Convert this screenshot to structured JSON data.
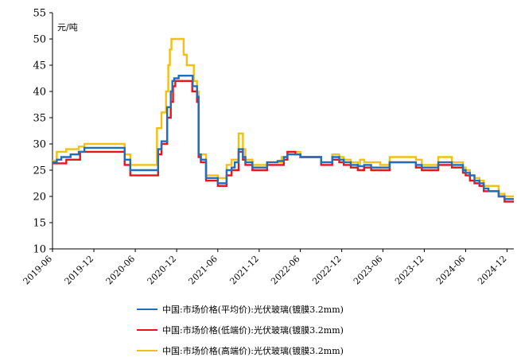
{
  "chart_data": {
    "type": "line",
    "unit_label": "元/吨",
    "ylim": [
      10,
      55
    ],
    "y_ticks": [
      "10",
      "15",
      "20",
      "25",
      "30",
      "35",
      "40",
      "45",
      "50",
      "55"
    ],
    "x_range": [
      "2019-06-01",
      "2024-12-31"
    ],
    "x_ticks": [
      "2019-06",
      "2019-12",
      "2020-06",
      "2020-12",
      "2021-06",
      "2021-12",
      "2022-06",
      "2022-12",
      "2023-06",
      "2023-12",
      "2024-06",
      "2024-12"
    ],
    "grid": false,
    "legend_position": "bottom",
    "series": [
      {
        "name": "中国:市场价格(平均价):光伏玻璃(镀膜3.2mm)",
        "color": "#1f6fbd",
        "step": true,
        "points": [
          [
            "2019-06-01",
            26.5
          ],
          [
            "2019-06-20",
            27.0
          ],
          [
            "2019-07-10",
            27.5
          ],
          [
            "2019-08-20",
            28.0
          ],
          [
            "2019-09-25",
            28.5
          ],
          [
            "2019-10-20",
            29.25
          ],
          [
            "2020-03-01",
            29.25
          ],
          [
            "2020-04-15",
            27.0
          ],
          [
            "2020-05-10",
            25.0
          ],
          [
            "2020-09-01",
            25.0
          ],
          [
            "2020-09-10",
            29.0
          ],
          [
            "2020-09-25",
            30.5
          ],
          [
            "2020-10-20",
            37.0
          ],
          [
            "2020-11-05",
            40.0
          ],
          [
            "2020-11-12",
            42.0
          ],
          [
            "2020-11-20",
            42.5
          ],
          [
            "2020-12-10",
            43.0
          ],
          [
            "2021-02-05",
            43.0
          ],
          [
            "2021-02-10",
            41.0
          ],
          [
            "2021-03-01",
            39.0
          ],
          [
            "2021-03-08",
            28.0
          ],
          [
            "2021-03-18",
            27.0
          ],
          [
            "2021-04-10",
            23.5
          ],
          [
            "2021-05-20",
            23.5
          ],
          [
            "2021-06-01",
            22.5
          ],
          [
            "2021-07-01",
            22.5
          ],
          [
            "2021-07-10",
            25.0
          ],
          [
            "2021-08-01",
            25.5
          ],
          [
            "2021-08-15",
            26.5
          ],
          [
            "2021-09-01",
            29.0
          ],
          [
            "2021-09-20",
            27.5
          ],
          [
            "2021-10-01",
            26.5
          ],
          [
            "2021-11-01",
            25.5
          ],
          [
            "2021-12-01",
            25.5
          ],
          [
            "2022-01-05",
            26.5
          ],
          [
            "2022-02-20",
            26.75
          ],
          [
            "2022-03-20",
            27.5
          ],
          [
            "2022-04-05",
            28.0
          ],
          [
            "2022-05-10",
            28.0
          ],
          [
            "2022-06-01",
            27.5
          ],
          [
            "2022-07-20",
            27.5
          ],
          [
            "2022-09-01",
            26.5
          ],
          [
            "2022-10-15",
            26.5
          ],
          [
            "2022-10-20",
            27.5
          ],
          [
            "2022-11-20",
            27.0
          ],
          [
            "2022-12-10",
            26.5
          ],
          [
            "2023-01-10",
            26.0
          ],
          [
            "2023-02-10",
            25.75
          ],
          [
            "2023-03-10",
            26.0
          ],
          [
            "2023-04-10",
            25.5
          ],
          [
            "2023-05-20",
            25.5
          ],
          [
            "2023-07-01",
            26.5
          ],
          [
            "2023-09-01",
            26.5
          ],
          [
            "2023-10-25",
            26.0
          ],
          [
            "2023-11-20",
            25.5
          ],
          [
            "2024-02-01",
            26.5
          ],
          [
            "2024-04-01",
            26.0
          ],
          [
            "2024-05-20",
            25.0
          ],
          [
            "2024-06-01",
            24.5
          ],
          [
            "2024-06-20",
            24.0
          ],
          [
            "2024-07-10",
            23.0
          ],
          [
            "2024-08-01",
            22.5
          ],
          [
            "2024-08-20",
            21.5
          ],
          [
            "2024-09-10",
            21.0
          ],
          [
            "2024-10-25",
            20.0
          ],
          [
            "2024-11-20",
            19.5
          ],
          [
            "2024-12-31",
            19.5
          ]
        ]
      },
      {
        "name": "中国:市场价格(低端价):光伏玻璃(镀膜3.2mm)",
        "color": "#e8141b",
        "step": true,
        "points": [
          [
            "2019-06-01",
            26.3
          ],
          [
            "2019-08-01",
            27.0
          ],
          [
            "2019-10-01",
            28.5
          ],
          [
            "2020-03-01",
            28.5
          ],
          [
            "2020-04-15",
            26.0
          ],
          [
            "2020-05-10",
            24.0
          ],
          [
            "2020-09-01",
            24.0
          ],
          [
            "2020-09-10",
            28.0
          ],
          [
            "2020-09-25",
            30.0
          ],
          [
            "2020-10-20",
            35.0
          ],
          [
            "2020-11-05",
            38.0
          ],
          [
            "2020-11-15",
            41.0
          ],
          [
            "2020-11-25",
            42.0
          ],
          [
            "2021-02-01",
            42.0
          ],
          [
            "2021-02-08",
            40.0
          ],
          [
            "2021-03-01",
            38.0
          ],
          [
            "2021-03-08",
            27.5
          ],
          [
            "2021-03-18",
            26.5
          ],
          [
            "2021-04-10",
            23.0
          ],
          [
            "2021-05-20",
            23.0
          ],
          [
            "2021-06-01",
            22.0
          ],
          [
            "2021-07-01",
            22.0
          ],
          [
            "2021-07-10",
            24.0
          ],
          [
            "2021-08-01",
            25.0
          ],
          [
            "2021-09-01",
            28.5
          ],
          [
            "2021-09-20",
            27.0
          ],
          [
            "2021-10-01",
            26.0
          ],
          [
            "2021-11-01",
            25.0
          ],
          [
            "2021-12-01",
            25.0
          ],
          [
            "2022-01-05",
            26.0
          ],
          [
            "2022-03-20",
            27.0
          ],
          [
            "2022-04-05",
            28.5
          ],
          [
            "2022-05-10",
            28.0
          ],
          [
            "2022-06-01",
            27.5
          ],
          [
            "2022-07-20",
            27.5
          ],
          [
            "2022-09-01",
            26.0
          ],
          [
            "2022-10-20",
            27.0
          ],
          [
            "2022-11-20",
            26.5
          ],
          [
            "2022-12-10",
            26.0
          ],
          [
            "2023-01-10",
            25.5
          ],
          [
            "2023-02-10",
            25.0
          ],
          [
            "2023-03-10",
            25.5
          ],
          [
            "2023-04-10",
            25.0
          ],
          [
            "2023-05-20",
            25.0
          ],
          [
            "2023-07-01",
            26.5
          ],
          [
            "2023-09-01",
            26.5
          ],
          [
            "2023-10-25",
            25.5
          ],
          [
            "2023-11-20",
            25.0
          ],
          [
            "2024-02-01",
            26.0
          ],
          [
            "2024-04-01",
            25.5
          ],
          [
            "2024-05-20",
            24.5
          ],
          [
            "2024-06-01",
            24.0
          ],
          [
            "2024-06-20",
            23.0
          ],
          [
            "2024-07-10",
            22.5
          ],
          [
            "2024-08-01",
            22.0
          ],
          [
            "2024-08-20",
            21.0
          ],
          [
            "2024-10-25",
            20.0
          ],
          [
            "2024-11-20",
            19.0
          ],
          [
            "2024-12-31",
            19.0
          ]
        ]
      },
      {
        "name": "中国:市场价格(高端价):光伏玻璃(镀膜3.2mm)",
        "color": "#f2c011",
        "step": true,
        "points": [
          [
            "2019-06-01",
            26.8
          ],
          [
            "2019-06-20",
            28.5
          ],
          [
            "2019-08-01",
            29.0
          ],
          [
            "2019-09-25",
            29.5
          ],
          [
            "2019-10-20",
            30.0
          ],
          [
            "2020-03-01",
            30.0
          ],
          [
            "2020-04-15",
            28.0
          ],
          [
            "2020-05-10",
            26.0
          ],
          [
            "2020-09-01",
            26.0
          ],
          [
            "2020-09-05",
            33.0
          ],
          [
            "2020-09-25",
            36.0
          ],
          [
            "2020-10-15",
            40.0
          ],
          [
            "2020-10-25",
            45.0
          ],
          [
            "2020-11-01",
            48.0
          ],
          [
            "2020-11-08",
            50.0
          ],
          [
            "2020-12-05",
            50.0
          ],
          [
            "2021-01-01",
            47.0
          ],
          [
            "2021-01-15",
            45.0
          ],
          [
            "2021-02-10",
            45.0
          ],
          [
            "2021-02-15",
            42.0
          ],
          [
            "2021-03-01",
            40.0
          ],
          [
            "2021-03-08",
            28.0
          ],
          [
            "2021-04-10",
            24.0
          ],
          [
            "2021-05-20",
            24.0
          ],
          [
            "2021-06-01",
            23.5
          ],
          [
            "2021-07-01",
            23.5
          ],
          [
            "2021-07-10",
            26.0
          ],
          [
            "2021-08-01",
            27.0
          ],
          [
            "2021-09-01",
            32.0
          ],
          [
            "2021-09-20",
            29.0
          ],
          [
            "2021-10-01",
            27.0
          ],
          [
            "2021-11-01",
            26.0
          ],
          [
            "2021-12-01",
            26.0
          ],
          [
            "2022-01-05",
            26.5
          ],
          [
            "2022-03-10",
            27.5
          ],
          [
            "2022-04-05",
            28.5
          ],
          [
            "2022-05-10",
            28.5
          ],
          [
            "2022-06-01",
            27.5
          ],
          [
            "2022-07-20",
            27.5
          ],
          [
            "2022-09-01",
            26.5
          ],
          [
            "2022-10-20",
            28.0
          ],
          [
            "2022-11-20",
            27.5
          ],
          [
            "2022-12-10",
            27.0
          ],
          [
            "2023-01-10",
            26.5
          ],
          [
            "2023-02-10",
            26.0
          ],
          [
            "2023-02-20",
            27.0
          ],
          [
            "2023-03-10",
            26.5
          ],
          [
            "2023-05-20",
            26.0
          ],
          [
            "2023-07-01",
            27.5
          ],
          [
            "2023-09-01",
            27.5
          ],
          [
            "2023-10-25",
            27.0
          ],
          [
            "2023-11-20",
            26.0
          ],
          [
            "2024-02-01",
            27.5
          ],
          [
            "2024-04-01",
            26.5
          ],
          [
            "2024-05-20",
            25.5
          ],
          [
            "2024-06-01",
            25.0
          ],
          [
            "2024-06-20",
            24.0
          ],
          [
            "2024-07-10",
            23.5
          ],
          [
            "2024-08-01",
            23.0
          ],
          [
            "2024-08-20",
            22.0
          ],
          [
            "2024-10-25",
            20.5
          ],
          [
            "2024-11-20",
            20.0
          ],
          [
            "2024-12-31",
            20.0
          ]
        ]
      }
    ]
  }
}
